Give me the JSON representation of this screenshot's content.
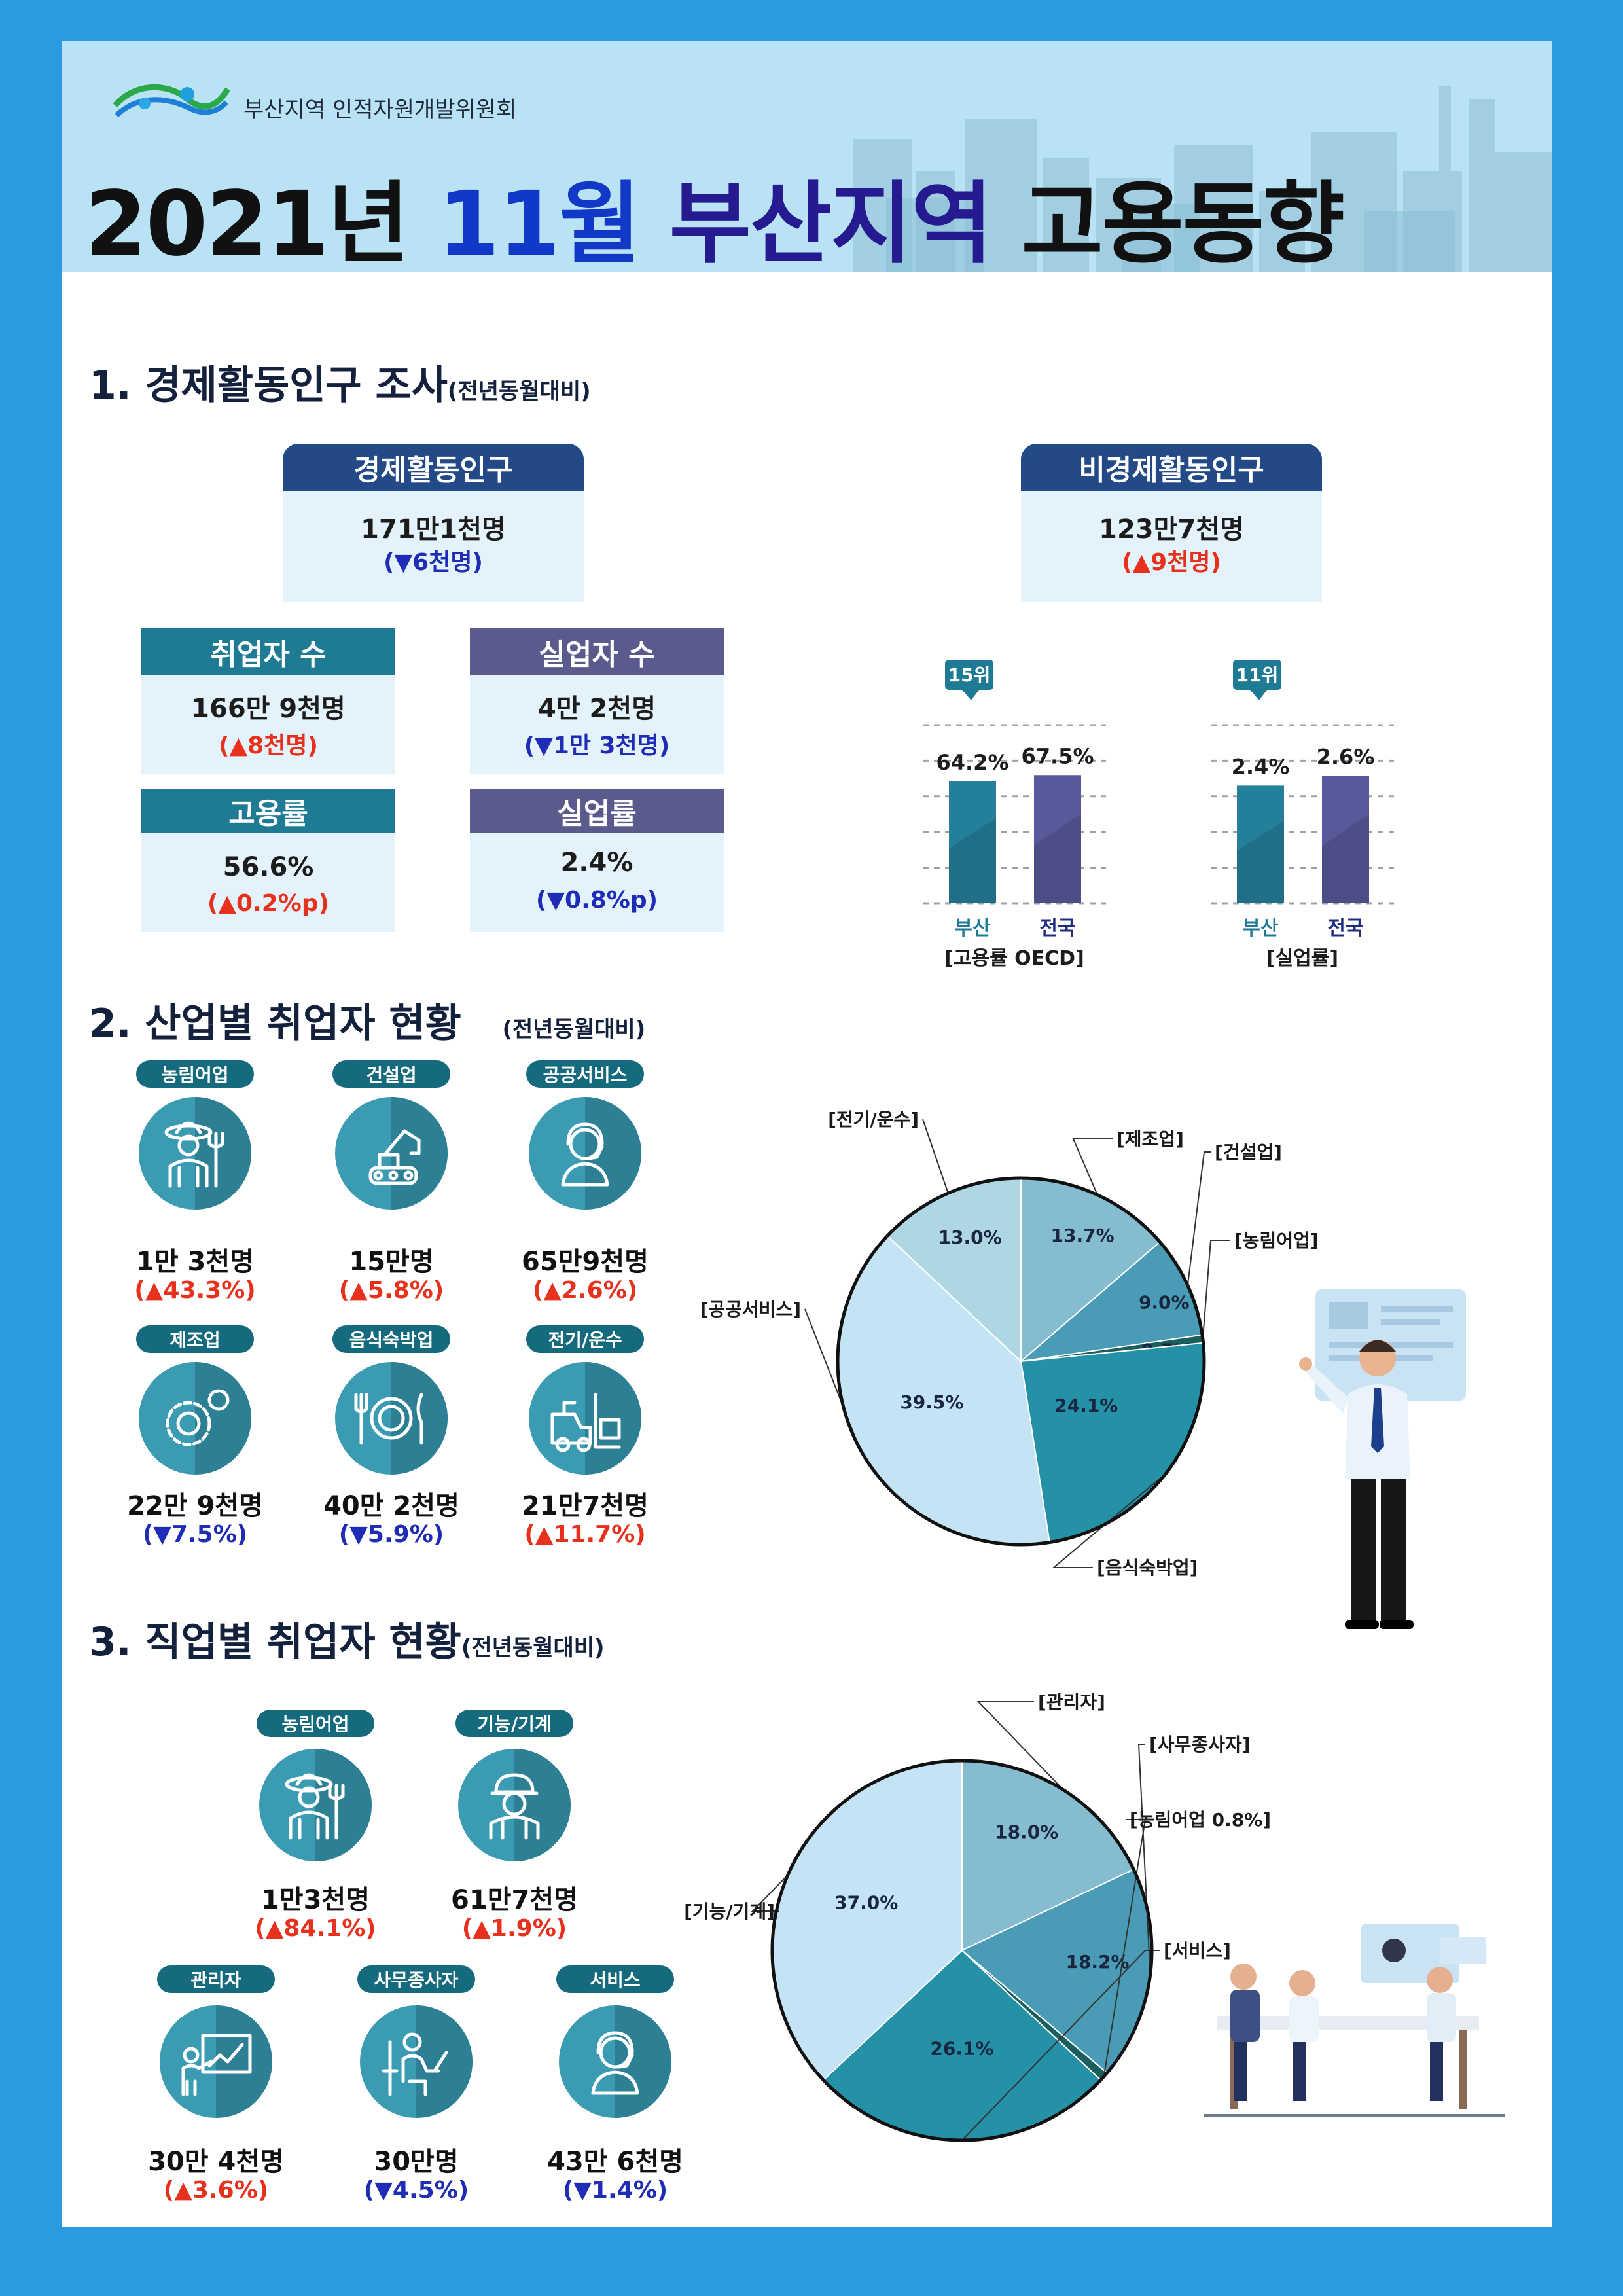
{
  "header": {
    "org_name": "부산지역 인적자원개발위원회",
    "title_year": "2021년",
    "title_month": "11월",
    "title_region": "부산지역",
    "title_rest": "고용동향"
  },
  "section1": {
    "title": "1. 경제활동인구 조사",
    "subtitle": "(전년동월대비)",
    "active_pop": {
      "label": "경제활동인구",
      "value": "171만1천명",
      "change": "(▼6천명)"
    },
    "inactive_pop": {
      "label": "비경제활동인구",
      "value": "123만7천명",
      "change": "(▲9천명)"
    },
    "employed": {
      "label": "취업자 수",
      "value": "166만 9천명",
      "change": "(▲8천명)"
    },
    "unemployed": {
      "label": "실업자 수",
      "value": "4만 2천명",
      "change": "(▼1만 3천명)"
    },
    "employment_rate": {
      "label": "고용률",
      "value": "56.6%",
      "change": "(▲0.2%p)"
    },
    "unemployment_rate": {
      "label": "실업률",
      "value": "2.4%",
      "change": "(▼0.8%p)"
    }
  },
  "section2": {
    "title": "2. 산업별 취업자 현황",
    "subtitle": "(전년동월대비)",
    "items": [
      {
        "label": "농림어업",
        "value": "1만 3천명",
        "change": "(▲43.3%)",
        "dir": "up"
      },
      {
        "label": "건설업",
        "value": "15만명",
        "change": "(▲5.8%)",
        "dir": "up"
      },
      {
        "label": "공공서비스",
        "value": "65만9천명",
        "change": "(▲2.6%)",
        "dir": "up"
      },
      {
        "label": "제조업",
        "value": "22만 9천명",
        "change": "(▼7.5%)",
        "dir": "down"
      },
      {
        "label": "음식숙박업",
        "value": "40만 2천명",
        "change": "(▼5.9%)",
        "dir": "down"
      },
      {
        "label": "전기/운수",
        "value": "21만7천명",
        "change": "(▲11.7%)",
        "dir": "up"
      }
    ]
  },
  "section3": {
    "title": "3. 직업별 취업자 현황",
    "subtitle": "(전년동월대비)",
    "items": [
      {
        "label": "농림어업",
        "value": "1만3천명",
        "change": "(▲84.1%)",
        "dir": "up"
      },
      {
        "label": "기능/기계",
        "value": "61만7천명",
        "change": "(▲1.9%)",
        "dir": "up"
      },
      {
        "label": "관리자",
        "value": "30만 4천명",
        "change": "(▲3.6%)",
        "dir": "up"
      },
      {
        "label": "사무종사자",
        "value": "30만명",
        "change": "(▼4.5%)",
        "dir": "down"
      },
      {
        "label": "서비스",
        "value": "43만 6천명",
        "change": "(▼1.4%)",
        "dir": "down"
      }
    ]
  },
  "colors": {
    "header_bg": "#b9e3f4",
    "nav_box": "#234a86",
    "teal_box": "#1f7a93",
    "slate_box": "#5a5a8c",
    "bar_busan": "#24809a",
    "bar_nation": "#58599b",
    "up": "#e8311c",
    "down": "#1f2cb5"
  },
  "chart_data": [
    {
      "type": "bar",
      "categories": [
        "부산",
        "전국"
      ],
      "values": [
        64.2,
        67.5
      ],
      "value_labels": [
        "64.2%",
        "67.5%"
      ],
      "badge": "15위",
      "xlabel": "[고용률 OECD]",
      "ylim": [
        0,
        80
      ]
    },
    {
      "type": "bar",
      "categories": [
        "부산",
        "전국"
      ],
      "values": [
        2.4,
        2.6
      ],
      "value_labels": [
        "2.4%",
        "2.6%"
      ],
      "badge": "11위",
      "xlabel": "[실업률]",
      "ylim": [
        0,
        3.1
      ]
    },
    {
      "type": "pie",
      "slices": [
        {
          "name": "[제조업]",
          "value": 13.7,
          "label": "13.7%",
          "color": "#86bcd0"
        },
        {
          "name": "[건설업]",
          "value": 9.0,
          "label": "9.0%",
          "color": "#4a9cb6"
        },
        {
          "name": "[농림어업]",
          "value": 0.7,
          "label": "0.7%",
          "color": "#1a5f5e"
        },
        {
          "name": "[음식숙박업]",
          "value": 24.1,
          "label": "24.1%",
          "color": "#2491a7"
        },
        {
          "name": "[공공서비스]",
          "value": 39.5,
          "label": "39.5%",
          "color": "#c4e4f5"
        },
        {
          "name": "[전기/운수]",
          "value": 13.0,
          "label": "13.0%",
          "color": "#afd6e3"
        }
      ]
    },
    {
      "type": "pie",
      "slices": [
        {
          "name": "[관리자]",
          "value": 18.0,
          "label": "18.0%",
          "color": "#86bcd0"
        },
        {
          "name": "[사무종사자]",
          "value": 18.2,
          "label": "18.2%",
          "color": "#4a9cb6"
        },
        {
          "name": "[농림어업 0.8%]",
          "value": 0.8,
          "label": "",
          "color": "#1a5f5e"
        },
        {
          "name": "[서비스]",
          "value": 26.1,
          "label": "26.1%",
          "color": "#2491a7"
        },
        {
          "name": "[기능/기계]",
          "value": 37.0,
          "label": "37.0%",
          "color": "#c4e4f5"
        }
      ]
    }
  ]
}
